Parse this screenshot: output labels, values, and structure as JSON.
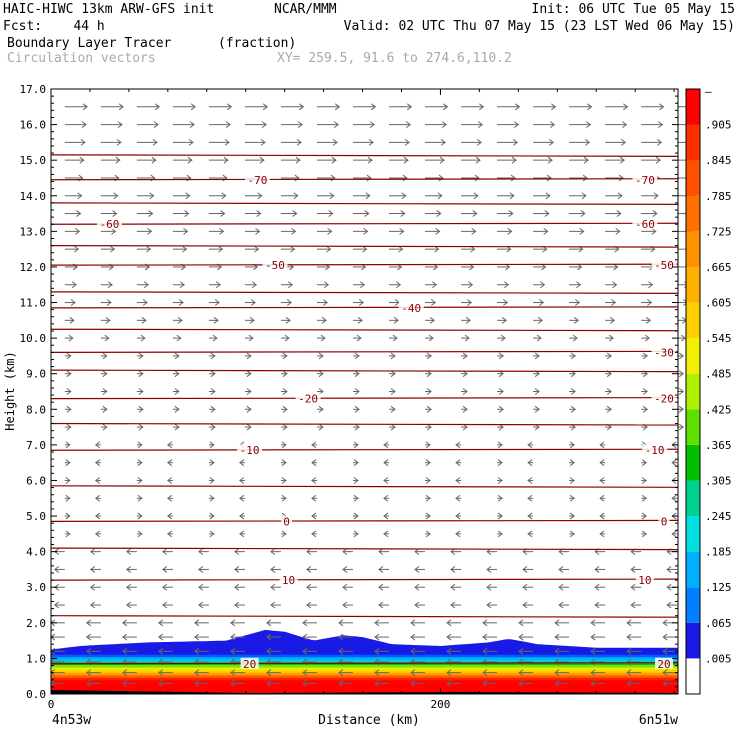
{
  "header": {
    "line1_left": "HAIC-HIWC 13km ARW-GFS init",
    "line1_mid": "NCAR/MMM",
    "line1_right": "Init: 06 UTC Tue 05 May 15",
    "line2_left": "Fcst:    44 h",
    "line2_right": "Valid: 02 UTC Thu 07 May 15 (23 LST Wed 06 May 15)",
    "line3_left": "Boundary Layer Tracer",
    "line3_mid": "(fraction)",
    "line4_left": "Circulation vectors",
    "line4_mid": "XY= 259.5, 91.6 to 274.6,110.2"
  },
  "chart_data": {
    "type": "heatmap",
    "ylabel": "Height (km)",
    "xlabel": "Distance (km)",
    "ylim": [
      0,
      17
    ],
    "xlim": [
      0,
      322
    ],
    "yticks": [
      "0.0",
      "1.0",
      "2.0",
      "3.0",
      "4.0",
      "5.0",
      "6.0",
      "7.0",
      "8.0",
      "9.0",
      "10.0",
      "11.0",
      "12.0",
      "13.0",
      "14.0",
      "15.0",
      "16.0",
      "17.0"
    ],
    "xticks": [
      {
        "value": 0,
        "label": "0"
      },
      {
        "value": 200,
        "label": "200"
      }
    ],
    "xcorner_left": "4n53w",
    "xcorner_right": "6n51w",
    "colorbar_labels": [
      ".005",
      ".065",
      ".125",
      ".185",
      ".245",
      ".305",
      ".365",
      ".425",
      ".485",
      ".545",
      ".605",
      ".665",
      ".725",
      ".785",
      ".845",
      ".905",
      "–"
    ],
    "tracer_top_km": [
      [
        0,
        1.25
      ],
      [
        15,
        1.35
      ],
      [
        50,
        1.45
      ],
      [
        90,
        1.5
      ],
      [
        100,
        1.65
      ],
      [
        110,
        1.8
      ],
      [
        120,
        1.75
      ],
      [
        135,
        1.5
      ],
      [
        150,
        1.65
      ],
      [
        160,
        1.6
      ],
      [
        175,
        1.4
      ],
      [
        200,
        1.35
      ],
      [
        225,
        1.45
      ],
      [
        235,
        1.55
      ],
      [
        250,
        1.4
      ],
      [
        280,
        1.3
      ],
      [
        322,
        1.3
      ]
    ],
    "temperature_isotherms": [
      {
        "label": "-70",
        "height_km": 14.45
      },
      {
        "label": "-60",
        "height_km": 13.2
      },
      {
        "label": "-50",
        "height_km": 12.05
      },
      {
        "label": "-40",
        "height_km": 10.85
      },
      {
        "label": "-30",
        "height_km": 9.6
      },
      {
        "label": "-20",
        "height_km": 8.3
      },
      {
        "label": "-10",
        "height_km": 6.85
      },
      {
        "label": "0",
        "height_km": 4.85
      },
      {
        "label": "10",
        "height_km": 3.2
      },
      {
        "label": "20",
        "height_km": 0.85
      }
    ],
    "isotherm_label_positions": [
      {
        "label": "-70",
        "x_km": 106
      },
      {
        "label": "-70",
        "x_km": 305
      },
      {
        "label": "-60",
        "x_km": 30
      },
      {
        "label": "-60",
        "x_km": 305
      },
      {
        "label": "-50",
        "x_km": 115
      },
      {
        "label": "-50",
        "x_km": 316
      },
      {
        "label": "-40",
        "x_km": 185
      },
      {
        "label": "-30",
        "x_km": 318
      },
      {
        "label": "-20",
        "x_km": 132
      },
      {
        "label": "-20",
        "x_km": 316
      },
      {
        "label": "-10",
        "x_km": 102
      },
      {
        "label": "-10",
        "x_km": 310
      },
      {
        "label": "0",
        "x_km": 121
      },
      {
        "label": "0",
        "x_km": 319
      },
      {
        "label": "10",
        "x_km": 122
      },
      {
        "label": "10",
        "x_km": 305
      },
      {
        "label": "20",
        "x_km": 102
      },
      {
        "label": "20",
        "x_km": 328
      }
    ],
    "vector_rows_km": [
      0.3,
      0.6,
      0.9,
      1.2,
      1.6,
      2.0,
      2.5,
      3.0,
      3.5,
      4.0,
      4.5,
      5.0,
      5.5,
      6.0,
      6.5,
      7.0,
      7.5,
      8.0,
      8.5,
      9.0,
      9.5,
      10.0,
      10.5,
      11.0,
      11.5,
      12.0,
      12.5,
      13.0,
      13.5,
      14.0,
      14.5,
      15.0,
      15.5,
      16.0,
      16.5
    ],
    "colors": {
      "isotherm": "#8b0000",
      "vectors": "#666666",
      "colorbar": [
        "#ffffff",
        "#1a1ae6",
        "#0080ff",
        "#00b0ff",
        "#00e0e0",
        "#00d090",
        "#00c000",
        "#60e000",
        "#b0f000",
        "#f0f000",
        "#ffd000",
        "#ffb000",
        "#ff9000",
        "#ff7000",
        "#ff5000",
        "#ff3000",
        "#ff0000"
      ]
    }
  }
}
